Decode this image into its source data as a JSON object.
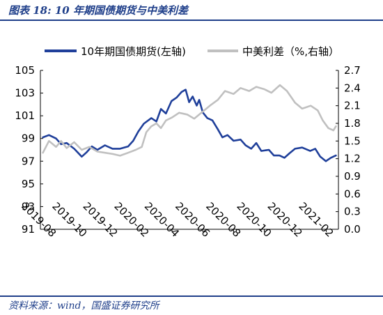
{
  "header": {
    "title": "图表 18:  10 年期国债期货与中美利差"
  },
  "footer": {
    "source": "资料来源：wind，国盛证券研究所"
  },
  "chart_data": {
    "type": "line",
    "title": "10 年期国债期货与中美利差",
    "legend_position": "top",
    "grid": false,
    "x_labels": [
      "2019-08",
      "2019-10",
      "2019-12",
      "2020-02",
      "2020-04",
      "2020-06",
      "2020-08",
      "2020-10",
      "2020-12",
      "2021-02"
    ],
    "y_left": {
      "min": 91,
      "max": 105,
      "ticks": [
        "91",
        "93",
        "95",
        "97",
        "99",
        "101",
        "103",
        "105"
      ]
    },
    "y_right": {
      "min": 0.0,
      "max": 2.7,
      "ticks": [
        "0.0",
        "0.3",
        "0.6",
        "0.9",
        "1.2",
        "1.5",
        "1.8",
        "2.1",
        "2.4",
        "2.7"
      ]
    },
    "series": [
      {
        "name": "10年期国债期货(左轴)",
        "axis": "left",
        "color": "#1f3f9a",
        "points": [
          [
            "2019-07-20",
            99.1
          ],
          [
            "2019-08-01",
            99.3
          ],
          [
            "2019-08-15",
            99.0
          ],
          [
            "2019-08-25",
            98.5
          ],
          [
            "2019-09-05",
            98.6
          ],
          [
            "2019-09-20",
            98.1
          ],
          [
            "2019-10-05",
            97.4
          ],
          [
            "2019-10-15",
            97.8
          ],
          [
            "2019-10-25",
            98.3
          ],
          [
            "2019-11-05",
            98.0
          ],
          [
            "2019-11-20",
            98.4
          ],
          [
            "2019-12-05",
            98.1
          ],
          [
            "2019-12-20",
            98.1
          ],
          [
            "2020-01-05",
            98.3
          ],
          [
            "2020-01-15",
            98.8
          ],
          [
            "2020-01-25",
            99.6
          ],
          [
            "2020-02-05",
            100.3
          ],
          [
            "2020-02-20",
            100.8
          ],
          [
            "2020-03-01",
            100.5
          ],
          [
            "2020-03-10",
            101.6
          ],
          [
            "2020-03-20",
            101.2
          ],
          [
            "2020-03-31",
            102.3
          ],
          [
            "2020-04-10",
            102.6
          ],
          [
            "2020-04-20",
            103.1
          ],
          [
            "2020-04-28",
            103.3
          ],
          [
            "2020-05-05",
            102.2
          ],
          [
            "2020-05-12",
            102.7
          ],
          [
            "2020-05-20",
            101.9
          ],
          [
            "2020-05-25",
            102.4
          ],
          [
            "2020-06-01",
            101.3
          ],
          [
            "2020-06-10",
            100.8
          ],
          [
            "2020-06-20",
            100.6
          ],
          [
            "2020-07-01",
            99.8
          ],
          [
            "2020-07-10",
            99.1
          ],
          [
            "2020-07-20",
            99.3
          ],
          [
            "2020-08-01",
            98.8
          ],
          [
            "2020-08-15",
            98.9
          ],
          [
            "2020-08-25",
            98.4
          ],
          [
            "2020-09-05",
            98.1
          ],
          [
            "2020-09-15",
            98.6
          ],
          [
            "2020-09-25",
            97.9
          ],
          [
            "2020-10-10",
            98.0
          ],
          [
            "2020-10-20",
            97.5
          ],
          [
            "2020-10-31",
            97.5
          ],
          [
            "2020-11-10",
            97.3
          ],
          [
            "2020-11-20",
            97.7
          ],
          [
            "2020-12-01",
            98.1
          ],
          [
            "2020-12-15",
            98.2
          ],
          [
            "2020-12-31",
            97.9
          ],
          [
            "2021-01-10",
            98.1
          ],
          [
            "2021-01-20",
            97.4
          ],
          [
            "2021-01-31",
            97.0
          ],
          [
            "2021-02-10",
            97.3
          ],
          [
            "2021-02-20",
            97.5
          ]
        ]
      },
      {
        "name": "中美利差（%,右轴）",
        "axis": "right",
        "color": "#c0c0c0",
        "points": [
          [
            "2019-07-20",
            1.3
          ],
          [
            "2019-08-01",
            1.5
          ],
          [
            "2019-08-15",
            1.4
          ],
          [
            "2019-08-25",
            1.5
          ],
          [
            "2019-09-05",
            1.38
          ],
          [
            "2019-09-20",
            1.48
          ],
          [
            "2019-10-05",
            1.35
          ],
          [
            "2019-10-20",
            1.4
          ],
          [
            "2019-11-05",
            1.32
          ],
          [
            "2019-11-20",
            1.3
          ],
          [
            "2019-12-05",
            1.28
          ],
          [
            "2019-12-20",
            1.25
          ],
          [
            "2020-01-05",
            1.3
          ],
          [
            "2020-01-20",
            1.35
          ],
          [
            "2020-02-01",
            1.4
          ],
          [
            "2020-02-10",
            1.65
          ],
          [
            "2020-02-20",
            1.75
          ],
          [
            "2020-03-01",
            1.8
          ],
          [
            "2020-03-10",
            1.72
          ],
          [
            "2020-03-20",
            1.85
          ],
          [
            "2020-04-01",
            1.9
          ],
          [
            "2020-04-15",
            1.98
          ],
          [
            "2020-05-01",
            1.95
          ],
          [
            "2020-05-15",
            1.88
          ],
          [
            "2020-06-01",
            2.0
          ],
          [
            "2020-06-15",
            2.1
          ],
          [
            "2020-07-01",
            2.2
          ],
          [
            "2020-07-15",
            2.35
          ],
          [
            "2020-08-01",
            2.3
          ],
          [
            "2020-08-15",
            2.4
          ],
          [
            "2020-09-01",
            2.35
          ],
          [
            "2020-09-15",
            2.42
          ],
          [
            "2020-10-01",
            2.38
          ],
          [
            "2020-10-15",
            2.32
          ],
          [
            "2020-11-01",
            2.45
          ],
          [
            "2020-11-15",
            2.35
          ],
          [
            "2020-12-01",
            2.15
          ],
          [
            "2020-12-15",
            2.05
          ],
          [
            "2021-01-01",
            2.1
          ],
          [
            "2021-01-15",
            2.02
          ],
          [
            "2021-01-25",
            1.85
          ],
          [
            "2021-02-05",
            1.72
          ],
          [
            "2021-02-15",
            1.68
          ],
          [
            "2021-02-20",
            1.75
          ]
        ]
      }
    ]
  }
}
